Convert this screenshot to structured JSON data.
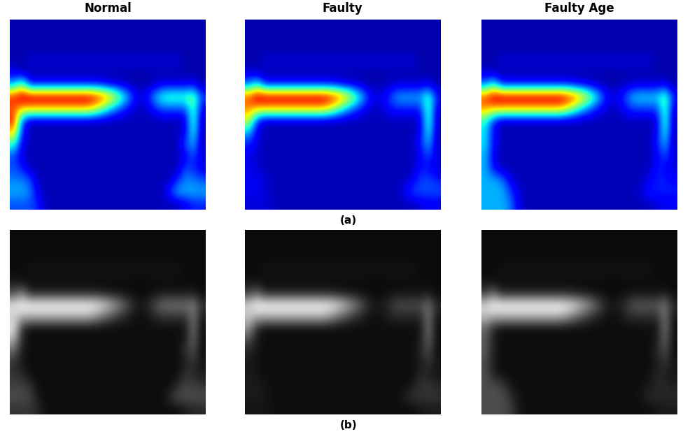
{
  "chart_data": {
    "type": "heatmap",
    "tick_labels": false,
    "value_range": [
      0,
      100
    ],
    "columns": [
      {
        "title": "Normal",
        "cells": [
          [
            4,
            4,
            4,
            4,
            4,
            4,
            4,
            4,
            4,
            4,
            4,
            4,
            4,
            4,
            4,
            4,
            4,
            4,
            4,
            4,
            4,
            4,
            4,
            4
          ],
          [
            4,
            4,
            4,
            4,
            4,
            4,
            4,
            4,
            4,
            4,
            4,
            4,
            4,
            4,
            4,
            4,
            4,
            4,
            4,
            4,
            4,
            4,
            4,
            4
          ],
          [
            4,
            4,
            4,
            4,
            4,
            4,
            4,
            4,
            4,
            4,
            4,
            4,
            4,
            4,
            4,
            4,
            4,
            4,
            4,
            4,
            4,
            4,
            4,
            4
          ],
          [
            4,
            4,
            8,
            8,
            8,
            8,
            8,
            8,
            8,
            8,
            8,
            8,
            8,
            8,
            8,
            8,
            8,
            8,
            8,
            8,
            8,
            4,
            4,
            4
          ],
          [
            10,
            6,
            4,
            4,
            4,
            4,
            4,
            4,
            4,
            4,
            4,
            4,
            4,
            4,
            4,
            4,
            4,
            4,
            4,
            4,
            4,
            4,
            4,
            4
          ],
          [
            30,
            50,
            15,
            15,
            15,
            15,
            15,
            15,
            15,
            15,
            15,
            12,
            10,
            8,
            6,
            4,
            4,
            6,
            10,
            10,
            10,
            10,
            12,
            4
          ],
          [
            90,
            100,
            100,
            100,
            100,
            100,
            100,
            100,
            100,
            100,
            95,
            85,
            70,
            50,
            30,
            12,
            10,
            25,
            40,
            45,
            45,
            45,
            50,
            20
          ],
          [
            80,
            70,
            70,
            70,
            70,
            70,
            70,
            70,
            70,
            70,
            60,
            45,
            30,
            20,
            12,
            6,
            6,
            12,
            20,
            20,
            20,
            20,
            45,
            10
          ],
          [
            90,
            20,
            5,
            5,
            5,
            5,
            5,
            5,
            5,
            5,
            5,
            5,
            5,
            5,
            5,
            5,
            5,
            5,
            5,
            5,
            5,
            8,
            45,
            5
          ],
          [
            70,
            15,
            5,
            5,
            5,
            5,
            5,
            5,
            5,
            5,
            5,
            5,
            5,
            5,
            5,
            5,
            5,
            5,
            5,
            5,
            5,
            10,
            40,
            5
          ],
          [
            40,
            10,
            5,
            5,
            5,
            5,
            5,
            5,
            5,
            5,
            5,
            5,
            5,
            5,
            5,
            5,
            5,
            5,
            5,
            5,
            5,
            20,
            30,
            5
          ],
          [
            20,
            8,
            5,
            5,
            5,
            5,
            5,
            5,
            5,
            5,
            5,
            5,
            5,
            5,
            5,
            5,
            5,
            5,
            5,
            5,
            5,
            10,
            20,
            8
          ],
          [
            20,
            15,
            5,
            5,
            5,
            5,
            5,
            5,
            5,
            5,
            5,
            5,
            5,
            5,
            5,
            5,
            5,
            5,
            5,
            5,
            5,
            20,
            15,
            10
          ],
          [
            25,
            25,
            20,
            5,
            5,
            5,
            5,
            5,
            5,
            5,
            5,
            5,
            5,
            5,
            5,
            5,
            5,
            5,
            5,
            5,
            15,
            25,
            25,
            20
          ],
          [
            30,
            30,
            25,
            8,
            5,
            5,
            5,
            5,
            5,
            5,
            5,
            5,
            5,
            5,
            5,
            5,
            5,
            5,
            5,
            15,
            30,
            30,
            30,
            30
          ],
          [
            20,
            20,
            20,
            15,
            5,
            5,
            5,
            5,
            5,
            5,
            5,
            5,
            5,
            5,
            5,
            5,
            5,
            5,
            5,
            5,
            5,
            10,
            15,
            15
          ]
        ]
      },
      {
        "title": "Faulty",
        "cells": [
          [
            4,
            4,
            4,
            4,
            4,
            4,
            4,
            4,
            4,
            4,
            4,
            4,
            4,
            4,
            4,
            4,
            4,
            4,
            4,
            4,
            4,
            4,
            4,
            4
          ],
          [
            4,
            4,
            4,
            4,
            4,
            4,
            4,
            4,
            4,
            4,
            4,
            4,
            4,
            4,
            4,
            4,
            4,
            4,
            4,
            4,
            4,
            4,
            4,
            4
          ],
          [
            4,
            4,
            4,
            4,
            4,
            4,
            4,
            4,
            4,
            4,
            4,
            4,
            4,
            4,
            4,
            4,
            4,
            4,
            4,
            4,
            4,
            4,
            4,
            4
          ],
          [
            4,
            4,
            8,
            8,
            8,
            8,
            8,
            8,
            8,
            8,
            8,
            8,
            8,
            8,
            8,
            8,
            8,
            8,
            8,
            8,
            8,
            4,
            4,
            4
          ],
          [
            8,
            6,
            4,
            4,
            4,
            4,
            4,
            4,
            4,
            4,
            4,
            4,
            4,
            4,
            4,
            4,
            4,
            4,
            4,
            4,
            4,
            4,
            4,
            4
          ],
          [
            25,
            40,
            15,
            15,
            15,
            15,
            15,
            15,
            15,
            15,
            15,
            12,
            10,
            8,
            6,
            4,
            4,
            6,
            8,
            8,
            8,
            8,
            10,
            4
          ],
          [
            85,
            100,
            100,
            100,
            100,
            100,
            100,
            100,
            100,
            100,
            95,
            85,
            70,
            50,
            30,
            12,
            10,
            15,
            28,
            30,
            30,
            30,
            45,
            15
          ],
          [
            75,
            70,
            70,
            70,
            70,
            70,
            70,
            70,
            70,
            70,
            60,
            45,
            30,
            20,
            12,
            6,
            6,
            12,
            15,
            15,
            15,
            15,
            45,
            8
          ],
          [
            60,
            15,
            5,
            5,
            5,
            5,
            5,
            5,
            5,
            5,
            5,
            5,
            5,
            5,
            5,
            5,
            5,
            5,
            5,
            5,
            5,
            8,
            45,
            5
          ],
          [
            30,
            10,
            5,
            5,
            5,
            5,
            5,
            5,
            5,
            5,
            5,
            5,
            5,
            5,
            5,
            5,
            5,
            5,
            5,
            5,
            5,
            10,
            40,
            5
          ],
          [
            15,
            8,
            5,
            5,
            5,
            5,
            5,
            5,
            5,
            5,
            5,
            5,
            5,
            5,
            5,
            5,
            5,
            5,
            5,
            5,
            5,
            15,
            30,
            5
          ],
          [
            10,
            6,
            5,
            5,
            5,
            5,
            5,
            5,
            5,
            5,
            5,
            5,
            5,
            5,
            5,
            5,
            5,
            5,
            5,
            5,
            5,
            10,
            20,
            8
          ],
          [
            10,
            8,
            5,
            5,
            5,
            5,
            5,
            5,
            5,
            5,
            5,
            5,
            5,
            5,
            5,
            5,
            5,
            5,
            5,
            5,
            5,
            15,
            12,
            8
          ],
          [
            10,
            10,
            8,
            5,
            5,
            5,
            5,
            5,
            5,
            5,
            5,
            5,
            5,
            5,
            5,
            5,
            5,
            5,
            5,
            5,
            10,
            18,
            20,
            15
          ],
          [
            10,
            10,
            8,
            5,
            5,
            5,
            5,
            5,
            5,
            5,
            5,
            5,
            5,
            5,
            5,
            5,
            5,
            5,
            5,
            10,
            20,
            20,
            20,
            20
          ],
          [
            8,
            8,
            8,
            6,
            5,
            5,
            5,
            5,
            5,
            5,
            5,
            5,
            5,
            5,
            5,
            5,
            5,
            5,
            5,
            5,
            5,
            8,
            10,
            10
          ]
        ]
      },
      {
        "title": "Faulty Age",
        "cells": [
          [
            4,
            4,
            4,
            4,
            4,
            4,
            4,
            4,
            4,
            4,
            4,
            4,
            4,
            4,
            4,
            4,
            4,
            4,
            4,
            4,
            4,
            4,
            4,
            4
          ],
          [
            4,
            4,
            4,
            4,
            4,
            4,
            4,
            4,
            4,
            4,
            4,
            4,
            4,
            4,
            4,
            4,
            4,
            4,
            4,
            4,
            4,
            4,
            4,
            4
          ],
          [
            4,
            4,
            4,
            4,
            4,
            4,
            4,
            4,
            4,
            4,
            4,
            4,
            4,
            4,
            4,
            4,
            4,
            4,
            4,
            4,
            4,
            4,
            4,
            4
          ],
          [
            4,
            4,
            8,
            8,
            8,
            8,
            8,
            8,
            8,
            8,
            8,
            8,
            8,
            8,
            8,
            8,
            8,
            8,
            8,
            8,
            8,
            4,
            4,
            4
          ],
          [
            8,
            6,
            4,
            4,
            4,
            4,
            4,
            4,
            4,
            4,
            4,
            4,
            4,
            4,
            4,
            4,
            4,
            4,
            4,
            4,
            4,
            4,
            4,
            4
          ],
          [
            25,
            40,
            15,
            15,
            15,
            15,
            15,
            15,
            15,
            15,
            15,
            12,
            10,
            8,
            6,
            4,
            4,
            6,
            8,
            8,
            8,
            8,
            10,
            4
          ],
          [
            85,
            100,
            100,
            100,
            100,
            100,
            100,
            100,
            100,
            100,
            95,
            85,
            70,
            50,
            30,
            12,
            10,
            18,
            32,
            35,
            35,
            35,
            48,
            15
          ],
          [
            75,
            70,
            70,
            70,
            70,
            70,
            70,
            70,
            70,
            70,
            60,
            45,
            30,
            20,
            12,
            6,
            6,
            12,
            18,
            18,
            18,
            18,
            45,
            8
          ],
          [
            40,
            15,
            5,
            5,
            5,
            5,
            5,
            5,
            5,
            5,
            5,
            5,
            5,
            5,
            5,
            5,
            5,
            5,
            5,
            5,
            5,
            8,
            45,
            5
          ],
          [
            35,
            12,
            5,
            5,
            5,
            5,
            5,
            5,
            5,
            5,
            5,
            5,
            5,
            5,
            5,
            5,
            5,
            5,
            5,
            5,
            5,
            10,
            40,
            5
          ],
          [
            35,
            12,
            5,
            5,
            5,
            5,
            5,
            5,
            5,
            5,
            5,
            5,
            5,
            5,
            5,
            5,
            5,
            5,
            5,
            5,
            5,
            15,
            30,
            5
          ],
          [
            30,
            10,
            5,
            5,
            5,
            5,
            5,
            5,
            5,
            5,
            5,
            5,
            5,
            5,
            5,
            5,
            5,
            5,
            5,
            5,
            5,
            10,
            20,
            8
          ],
          [
            30,
            12,
            5,
            5,
            5,
            5,
            5,
            5,
            5,
            5,
            5,
            5,
            5,
            5,
            5,
            5,
            5,
            5,
            5,
            5,
            5,
            15,
            12,
            8
          ],
          [
            30,
            30,
            25,
            10,
            5,
            5,
            5,
            5,
            5,
            5,
            5,
            5,
            5,
            5,
            5,
            5,
            5,
            5,
            5,
            5,
            10,
            15,
            15,
            12
          ],
          [
            30,
            30,
            30,
            20,
            8,
            5,
            5,
            5,
            5,
            5,
            5,
            5,
            5,
            5,
            5,
            5,
            5,
            5,
            5,
            8,
            15,
            15,
            15,
            15
          ],
          [
            30,
            30,
            30,
            25,
            10,
            5,
            5,
            5,
            5,
            5,
            5,
            5,
            5,
            5,
            5,
            5,
            5,
            5,
            5,
            5,
            5,
            8,
            10,
            10
          ]
        ]
      }
    ],
    "rows": [
      {
        "label": "(a)",
        "color": "jet"
      },
      {
        "label": "(b)",
        "color": "gray"
      }
    ]
  }
}
